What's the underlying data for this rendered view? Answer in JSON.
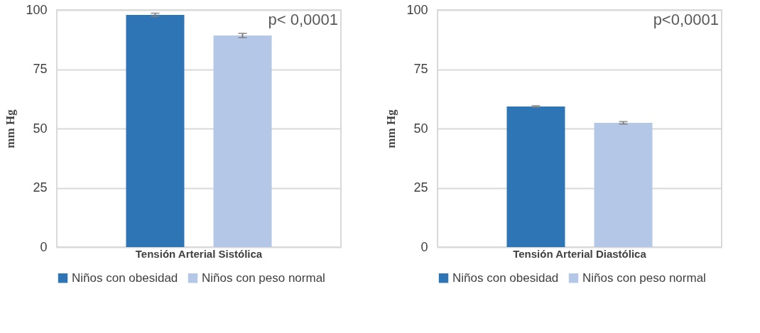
{
  "chart_data": [
    {
      "type": "bar",
      "ylabel": "mm Hg",
      "categories": [
        "Tensión Arterial Sistólica"
      ],
      "ylim": [
        0,
        100
      ],
      "yticks": [
        0,
        25,
        50,
        75,
        100
      ],
      "grid": "y",
      "legend": "bottom",
      "annotations": [
        "p< 0,0001"
      ],
      "series": [
        {
          "name": "Niños con obesidad",
          "color": "#2e75b6",
          "values": [
            97.9
          ],
          "errors": [
            0.7
          ]
        },
        {
          "name": "Niños con peso normal",
          "color": "#b4c7e7",
          "values": [
            89.2
          ],
          "errors": [
            0.9
          ]
        }
      ]
    },
    {
      "type": "bar",
      "ylabel": "mm Hg",
      "categories": [
        "Tensión Arterial Diastólica"
      ],
      "ylim": [
        0,
        100
      ],
      "yticks": [
        0,
        25,
        50,
        75,
        100
      ],
      "grid": "y",
      "legend": "bottom",
      "annotations": [
        "p<0,0001"
      ],
      "series": [
        {
          "name": "Niños con obesidad",
          "color": "#2e75b6",
          "values": [
            59.3
          ],
          "errors": [
            0.3
          ]
        },
        {
          "name": "Niños con peso normal",
          "color": "#b4c7e7",
          "values": [
            52.4
          ],
          "errors": [
            0.5
          ]
        }
      ]
    }
  ]
}
